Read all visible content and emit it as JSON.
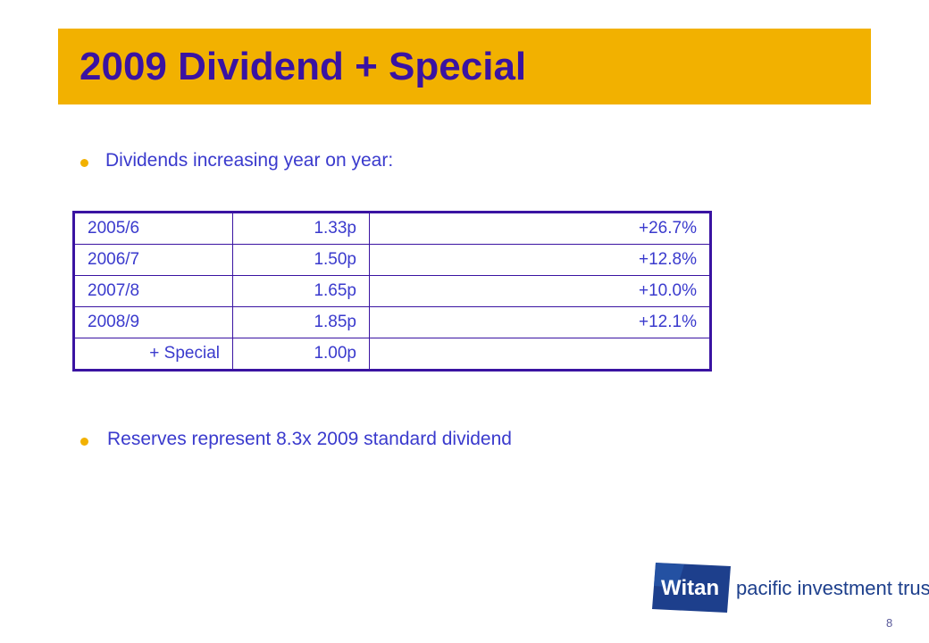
{
  "slide": {
    "title": "2009 Dividend + Special",
    "bullets": [
      "Dividends increasing year on year:",
      "Reserves represent 8.3x 2009 standard dividend"
    ],
    "table": {
      "rows": [
        {
          "year": "2005/6",
          "dividend": "1.33p",
          "change": "+26.7%"
        },
        {
          "year": "2006/7",
          "dividend": "1.50p",
          "change": "+12.8%"
        },
        {
          "year": "2007/8",
          "dividend": "1.65p",
          "change": "+10.0%"
        },
        {
          "year": "2008/9",
          "dividend": "1.85p",
          "change": "+12.1%"
        },
        {
          "year": "+ Special",
          "dividend": "1.00p",
          "change": ""
        }
      ]
    },
    "logo": {
      "word": "Witan",
      "tagline": "pacific investment trust"
    },
    "page_number": "8"
  },
  "colors": {
    "title_bar": "#f2b100",
    "title_text": "#3a13a2",
    "body_text": "#3a3acd",
    "bullet_dot": "#f2b100",
    "logo_blue": "#1d3f8c"
  }
}
